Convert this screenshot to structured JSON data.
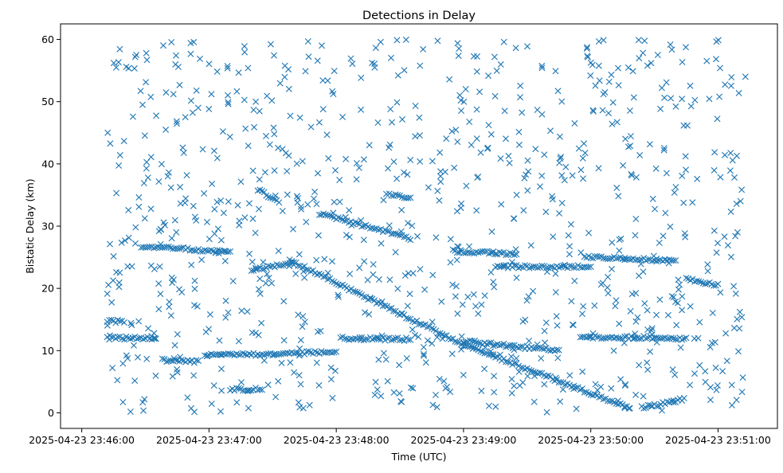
{
  "chart_data": {
    "type": "scatter",
    "title": "Detections in Delay",
    "xlabel": "Time (UTC)",
    "ylabel": "Bistatic Delay (km)",
    "marker": "x",
    "color": "#1f77b4",
    "xlim": [
      "2025-04-23 23:45:50",
      "2025-04-23 23:51:28"
    ],
    "ylim": [
      -2.5,
      62.5
    ],
    "x_ticks": [
      {
        "value": "2025-04-23 23:46:00",
        "label": "2025-04-23 23:46:00"
      },
      {
        "value": "2025-04-23 23:47:00",
        "label": "2025-04-23 23:47:00"
      },
      {
        "value": "2025-04-23 23:48:00",
        "label": "2025-04-23 23:48:00"
      },
      {
        "value": "2025-04-23 23:49:00",
        "label": "2025-04-23 23:49:00"
      },
      {
        "value": "2025-04-23 23:50:00",
        "label": "2025-04-23 23:50:00"
      },
      {
        "value": "2025-04-23 23:51:00",
        "label": "2025-04-23 23:51:00"
      }
    ],
    "y_ticks": [
      0,
      10,
      20,
      30,
      40,
      50,
      60
    ],
    "grid": false,
    "legend": "none",
    "tracks": [
      {
        "start": "2025-04-23 23:46:12",
        "end": "2025-04-23 23:46:20",
        "delay_start": 14.7,
        "delay_end": 14.7
      },
      {
        "start": "2025-04-23 23:46:12",
        "end": "2025-04-23 23:46:35",
        "delay_start": 12.0,
        "delay_end": 12.0
      },
      {
        "start": "2025-04-23 23:46:28",
        "end": "2025-04-23 23:47:10",
        "delay_start": 26.8,
        "delay_end": 25.8
      },
      {
        "start": "2025-04-23 23:46:38",
        "end": "2025-04-23 23:46:55",
        "delay_start": 8.5,
        "delay_end": 8.2
      },
      {
        "start": "2025-04-23 23:46:58",
        "end": "2025-04-23 23:48:00",
        "delay_start": 9.2,
        "delay_end": 9.8
      },
      {
        "start": "2025-04-23 23:47:10",
        "end": "2025-04-23 23:47:25",
        "delay_start": 3.8,
        "delay_end": 3.8
      },
      {
        "start": "2025-04-23 23:47:20",
        "end": "2025-04-23 23:47:40",
        "delay_start": 23.0,
        "delay_end": 24.0
      },
      {
        "start": "2025-04-23 23:47:23",
        "end": "2025-04-23 23:47:33",
        "delay_start": 35.8,
        "delay_end": 34.0
      },
      {
        "start": "2025-04-23 23:47:38",
        "end": "2025-04-23 23:49:00",
        "delay_start": 24.5,
        "delay_end": 11.0
      },
      {
        "start": "2025-04-23 23:47:52",
        "end": "2025-04-23 23:48:35",
        "delay_start": 32.0,
        "delay_end": 28.0
      },
      {
        "start": "2025-04-23 23:48:02",
        "end": "2025-04-23 23:48:35",
        "delay_start": 12.0,
        "delay_end": 11.8
      },
      {
        "start": "2025-04-23 23:48:25",
        "end": "2025-04-23 23:48:35",
        "delay_start": 35.0,
        "delay_end": 34.6
      },
      {
        "start": "2025-04-23 23:48:55",
        "end": "2025-04-23 23:49:25",
        "delay_start": 26.0,
        "delay_end": 25.5
      },
      {
        "start": "2025-04-23 23:49:00",
        "end": "2025-04-23 23:50:18",
        "delay_start": 11.0,
        "delay_end": 0.8
      },
      {
        "start": "2025-04-23 23:49:00",
        "end": "2025-04-23 23:49:45",
        "delay_start": 11.5,
        "delay_end": 10.0
      },
      {
        "start": "2025-04-23 23:49:15",
        "end": "2025-04-23 23:50:00",
        "delay_start": 23.5,
        "delay_end": 23.5
      },
      {
        "start": "2025-04-23 23:49:55",
        "end": "2025-04-23 23:50:45",
        "delay_start": 12.2,
        "delay_end": 12.0
      },
      {
        "start": "2025-04-23 23:49:58",
        "end": "2025-04-23 23:50:40",
        "delay_start": 25.0,
        "delay_end": 24.5
      },
      {
        "start": "2025-04-23 23:50:24",
        "end": "2025-04-23 23:50:44",
        "delay_start": 0.8,
        "delay_end": 2.2
      },
      {
        "start": "2025-04-23 23:50:45",
        "end": "2025-04-23 23:51:00",
        "delay_start": 21.5,
        "delay_end": 20.5
      }
    ],
    "scatter": {
      "points": 900,
      "x_range": [
        "2025-04-23 23:46:12",
        "2025-04-23 23:51:13"
      ],
      "y_range": [
        0,
        60
      ]
    }
  }
}
